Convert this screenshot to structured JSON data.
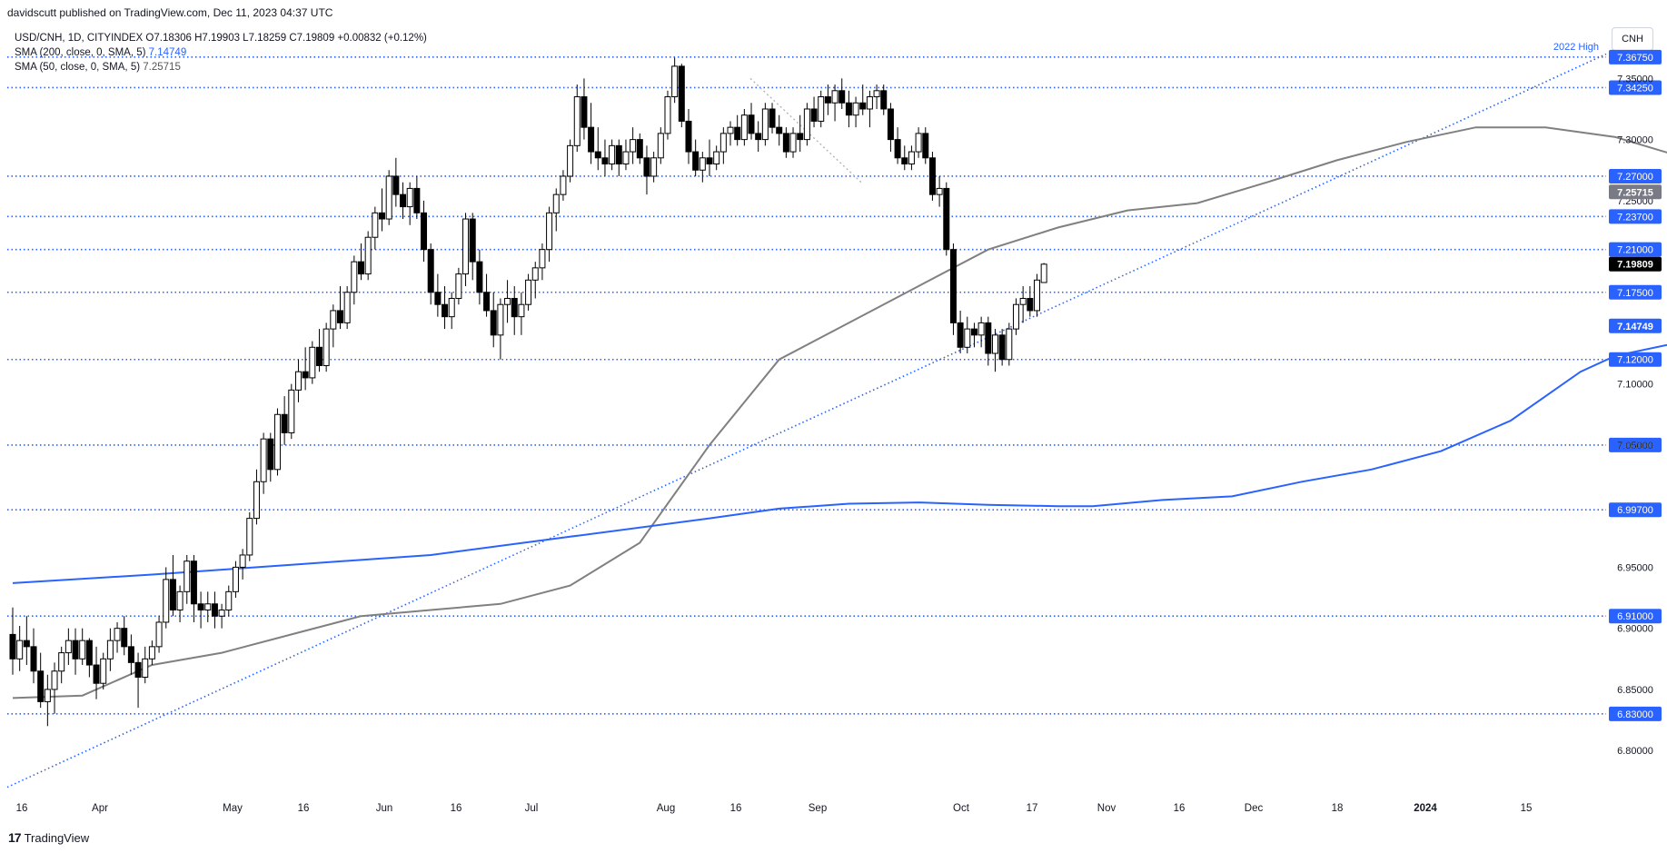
{
  "publisher": "davidscutt published on TradingView.com, Dec 11, 2023 04:37 UTC",
  "legend": {
    "symbol_line": "USD/CNH, 1D, CITYINDEX O7.18306 H7.19903 L7.18259 C7.19809 +0.00832 (+0.12%)",
    "sma200_label": "SMA (200, close, 0, SMA, 5)",
    "sma200_value": "7.14749",
    "sma50_label": "SMA (50, close, 0, SMA, 5)",
    "sma50_value": "7.25715"
  },
  "currency_button": "CNH",
  "brand": {
    "logo": "17",
    "name": "TradingView"
  },
  "colors": {
    "up": "#ffffff",
    "down": "#000000",
    "sma200": "#2962ff",
    "sma50": "#808080",
    "level": "#2962ff",
    "accent_label": "#2962ff"
  },
  "chart_data": {
    "type": "candlestick",
    "symbol": "USD/CNH",
    "ylim": [
      6.76,
      7.38
    ],
    "axis_ticks": [
      "7.35000",
      "7.30000",
      "7.25000",
      "7.10000",
      "7.05000",
      "6.95000",
      "6.90000",
      "6.85000",
      "6.80000"
    ],
    "x_labels": [
      "16",
      "Apr",
      "May",
      "16",
      "Jun",
      "16",
      "Jul",
      "Aug",
      "16",
      "Sep",
      "Oct",
      "17",
      "Nov",
      "16",
      "Dec",
      "18",
      "2024",
      "15"
    ],
    "levels": [
      {
        "value": 7.3675,
        "label": "7.36750"
      },
      {
        "value": 7.3425,
        "label": "7.34250"
      },
      {
        "value": 7.27,
        "label": "7.27000"
      },
      {
        "value": 7.237,
        "label": "7.23700"
      },
      {
        "value": 7.21,
        "label": "7.21000"
      },
      {
        "value": 7.175,
        "label": "7.17500"
      },
      {
        "value": 7.12,
        "label": "7.12000"
      },
      {
        "value": 7.05,
        "label": "7.05000"
      },
      {
        "value": 6.997,
        "label": "6.99700"
      },
      {
        "value": 6.91,
        "label": "6.91000"
      },
      {
        "value": 6.83,
        "label": "6.83000"
      }
    ],
    "annotation": "2022 High",
    "last_price": {
      "value": 7.19809,
      "label": "7.19809"
    },
    "sma50_last": {
      "value": 7.25715,
      "label": "7.25715"
    },
    "sma200_last": {
      "value": 7.14749,
      "label": "7.14749"
    },
    "trendline": {
      "from": {
        "date": "Mar 13",
        "value": 6.77
      },
      "to": {
        "date": "Jan 23",
        "value": 7.37
      }
    },
    "sma50_series": [
      [
        0,
        6.843
      ],
      [
        10,
        6.845
      ],
      [
        20,
        6.87
      ],
      [
        30,
        6.88
      ],
      [
        40,
        6.895
      ],
      [
        50,
        6.91
      ],
      [
        60,
        6.915
      ],
      [
        70,
        6.92
      ],
      [
        80,
        6.935
      ],
      [
        90,
        6.97
      ],
      [
        100,
        7.05
      ],
      [
        110,
        7.12
      ],
      [
        120,
        7.15
      ],
      [
        130,
        7.18
      ],
      [
        140,
        7.21
      ],
      [
        150,
        7.228
      ],
      [
        160,
        7.242
      ],
      [
        170,
        7.248
      ],
      [
        180,
        7.265
      ],
      [
        190,
        7.283
      ],
      [
        200,
        7.298
      ],
      [
        210,
        7.31
      ],
      [
        220,
        7.31
      ],
      [
        230,
        7.302
      ],
      [
        240,
        7.285
      ],
      [
        250,
        7.262
      ]
    ],
    "sma200_series": [
      [
        0,
        6.937
      ],
      [
        20,
        6.944
      ],
      [
        40,
        6.952
      ],
      [
        60,
        6.96
      ],
      [
        80,
        6.975
      ],
      [
        100,
        6.99
      ],
      [
        110,
        6.998
      ],
      [
        120,
        7.002
      ],
      [
        130,
        7.003
      ],
      [
        140,
        7.001
      ],
      [
        150,
        7.0
      ],
      [
        155,
        7.0
      ],
      [
        165,
        7.005
      ],
      [
        175,
        7.008
      ],
      [
        185,
        7.02
      ],
      [
        195,
        7.03
      ],
      [
        205,
        7.045
      ],
      [
        215,
        7.07
      ],
      [
        225,
        7.11
      ],
      [
        230,
        7.123
      ],
      [
        240,
        7.135
      ],
      [
        250,
        7.147
      ]
    ],
    "ohlc": [
      [
        6.895,
        6.917,
        6.862,
        6.875
      ],
      [
        6.875,
        6.902,
        6.865,
        6.89
      ],
      [
        6.89,
        6.91,
        6.87,
        6.885
      ],
      [
        6.885,
        6.9,
        6.855,
        6.865
      ],
      [
        6.865,
        6.88,
        6.835,
        6.84
      ],
      [
        6.84,
        6.862,
        6.82,
        6.85
      ],
      [
        6.85,
        6.872,
        6.83,
        6.865
      ],
      [
        6.865,
        6.885,
        6.855,
        6.88
      ],
      [
        6.88,
        6.9,
        6.87,
        6.89
      ],
      [
        6.89,
        6.9,
        6.862,
        6.875
      ],
      [
        6.875,
        6.9,
        6.87,
        6.89
      ],
      [
        6.89,
        6.892,
        6.86,
        6.87
      ],
      [
        6.87,
        6.885,
        6.842,
        6.855
      ],
      [
        6.855,
        6.88,
        6.85,
        6.875
      ],
      [
        6.875,
        6.9,
        6.865,
        6.89
      ],
      [
        6.89,
        6.905,
        6.88,
        6.9
      ],
      [
        6.9,
        6.91,
        6.878,
        6.885
      ],
      [
        6.885,
        6.895,
        6.862,
        6.872
      ],
      [
        6.872,
        6.88,
        6.835,
        6.86
      ],
      [
        6.86,
        6.885,
        6.855,
        6.875
      ],
      [
        6.875,
        6.89,
        6.87,
        6.885
      ],
      [
        6.885,
        6.91,
        6.88,
        6.905
      ],
      [
        6.905,
        6.95,
        6.9,
        6.94
      ],
      [
        6.94,
        6.96,
        6.91,
        6.915
      ],
      [
        6.915,
        6.935,
        6.905,
        6.93
      ],
      [
        6.93,
        6.96,
        6.92,
        6.955
      ],
      [
        6.955,
        6.96,
        6.905,
        6.92
      ],
      [
        6.92,
        6.93,
        6.9,
        6.915
      ],
      [
        6.915,
        6.93,
        6.905,
        6.92
      ],
      [
        6.92,
        6.93,
        6.9,
        6.91
      ],
      [
        6.91,
        6.92,
        6.9,
        6.915
      ],
      [
        6.915,
        6.935,
        6.91,
        6.93
      ],
      [
        6.93,
        6.955,
        6.925,
        6.95
      ],
      [
        6.95,
        6.965,
        6.94,
        6.96
      ],
      [
        6.96,
        6.995,
        6.955,
        6.99
      ],
      [
        6.99,
        7.03,
        6.985,
        7.02
      ],
      [
        7.02,
        7.06,
        7.01,
        7.055
      ],
      [
        7.055,
        7.06,
        7.02,
        7.03
      ],
      [
        7.03,
        7.08,
        7.025,
        7.075
      ],
      [
        7.075,
        7.09,
        7.05,
        7.06
      ],
      [
        7.06,
        7.1,
        7.055,
        7.095
      ],
      [
        7.095,
        7.12,
        7.085,
        7.11
      ],
      [
        7.11,
        7.13,
        7.095,
        7.105
      ],
      [
        7.105,
        7.135,
        7.1,
        7.13
      ],
      [
        7.13,
        7.145,
        7.11,
        7.115
      ],
      [
        7.115,
        7.15,
        7.11,
        7.145
      ],
      [
        7.145,
        7.165,
        7.13,
        7.16
      ],
      [
        7.16,
        7.18,
        7.145,
        7.15
      ],
      [
        7.15,
        7.18,
        7.145,
        7.175
      ],
      [
        7.175,
        7.205,
        7.165,
        7.2
      ],
      [
        7.2,
        7.215,
        7.185,
        7.19
      ],
      [
        7.19,
        7.225,
        7.185,
        7.22
      ],
      [
        7.22,
        7.245,
        7.21,
        7.24
      ],
      [
        7.24,
        7.26,
        7.225,
        7.235
      ],
      [
        7.235,
        7.275,
        7.23,
        7.27
      ],
      [
        7.27,
        7.285,
        7.245,
        7.255
      ],
      [
        7.255,
        7.265,
        7.235,
        7.245
      ],
      [
        7.245,
        7.265,
        7.23,
        7.26
      ],
      [
        7.26,
        7.27,
        7.235,
        7.24
      ],
      [
        7.24,
        7.25,
        7.2,
        7.21
      ],
      [
        7.21,
        7.215,
        7.165,
        7.175
      ],
      [
        7.175,
        7.19,
        7.155,
        7.165
      ],
      [
        7.165,
        7.18,
        7.145,
        7.155
      ],
      [
        7.155,
        7.175,
        7.145,
        7.17
      ],
      [
        7.17,
        7.195,
        7.165,
        7.19
      ],
      [
        7.19,
        7.24,
        7.18,
        7.235
      ],
      [
        7.235,
        7.24,
        7.185,
        7.2
      ],
      [
        7.2,
        7.21,
        7.165,
        7.175
      ],
      [
        7.175,
        7.19,
        7.155,
        7.16
      ],
      [
        7.16,
        7.175,
        7.13,
        7.14
      ],
      [
        7.14,
        7.17,
        7.12,
        7.165
      ],
      [
        7.165,
        7.185,
        7.15,
        7.17
      ],
      [
        7.17,
        7.18,
        7.14,
        7.155
      ],
      [
        7.155,
        7.175,
        7.14,
        7.165
      ],
      [
        7.165,
        7.19,
        7.16,
        7.185
      ],
      [
        7.185,
        7.2,
        7.17,
        7.195
      ],
      [
        7.195,
        7.215,
        7.185,
        7.21
      ],
      [
        7.21,
        7.245,
        7.2,
        7.24
      ],
      [
        7.24,
        7.26,
        7.225,
        7.255
      ],
      [
        7.255,
        7.275,
        7.25,
        7.27
      ],
      [
        7.27,
        7.3,
        7.265,
        7.295
      ],
      [
        7.295,
        7.345,
        7.29,
        7.335
      ],
      [
        7.335,
        7.35,
        7.3,
        7.31
      ],
      [
        7.31,
        7.33,
        7.28,
        7.29
      ],
      [
        7.29,
        7.31,
        7.275,
        7.285
      ],
      [
        7.285,
        7.3,
        7.27,
        7.28
      ],
      [
        7.28,
        7.3,
        7.275,
        7.295
      ],
      [
        7.295,
        7.3,
        7.27,
        7.28
      ],
      [
        7.28,
        7.3,
        7.275,
        7.29
      ],
      [
        7.29,
        7.31,
        7.28,
        7.3
      ],
      [
        7.3,
        7.305,
        7.28,
        7.285
      ],
      [
        7.285,
        7.295,
        7.255,
        7.27
      ],
      [
        7.27,
        7.29,
        7.265,
        7.285
      ],
      [
        7.285,
        7.31,
        7.28,
        7.305
      ],
      [
        7.305,
        7.34,
        7.3,
        7.335
      ],
      [
        7.335,
        7.367,
        7.33,
        7.36
      ],
      [
        7.36,
        7.362,
        7.31,
        7.315
      ],
      [
        7.315,
        7.325,
        7.28,
        7.29
      ],
      [
        7.29,
        7.3,
        7.27,
        7.275
      ],
      [
        7.275,
        7.29,
        7.265,
        7.285
      ],
      [
        7.285,
        7.3,
        7.27,
        7.28
      ],
      [
        7.28,
        7.295,
        7.275,
        7.29
      ],
      [
        7.29,
        7.31,
        7.28,
        7.305
      ],
      [
        7.305,
        7.315,
        7.295,
        7.31
      ],
      [
        7.31,
        7.32,
        7.295,
        7.3
      ],
      [
        7.3,
        7.325,
        7.295,
        7.32
      ],
      [
        7.32,
        7.33,
        7.3,
        7.305
      ],
      [
        7.305,
        7.315,
        7.29,
        7.3
      ],
      [
        7.3,
        7.33,
        7.295,
        7.325
      ],
      [
        7.325,
        7.33,
        7.305,
        7.31
      ],
      [
        7.31,
        7.32,
        7.295,
        7.305
      ],
      [
        7.305,
        7.31,
        7.285,
        7.29
      ],
      [
        7.29,
        7.31,
        7.285,
        7.305
      ],
      [
        7.305,
        7.32,
        7.29,
        7.3
      ],
      [
        7.3,
        7.33,
        7.295,
        7.325
      ],
      [
        7.325,
        7.335,
        7.31,
        7.315
      ],
      [
        7.315,
        7.34,
        7.31,
        7.335
      ],
      [
        7.335,
        7.345,
        7.32,
        7.33
      ],
      [
        7.33,
        7.345,
        7.315,
        7.34
      ],
      [
        7.34,
        7.35,
        7.325,
        7.33
      ],
      [
        7.33,
        7.34,
        7.31,
        7.32
      ],
      [
        7.32,
        7.335,
        7.31,
        7.33
      ],
      [
        7.33,
        7.345,
        7.32,
        7.325
      ],
      [
        7.325,
        7.34,
        7.31,
        7.335
      ],
      [
        7.335,
        7.345,
        7.325,
        7.34
      ],
      [
        7.34,
        7.345,
        7.32,
        7.325
      ],
      [
        7.325,
        7.33,
        7.29,
        7.3
      ],
      [
        7.3,
        7.31,
        7.28,
        7.285
      ],
      [
        7.285,
        7.295,
        7.275,
        7.28
      ],
      [
        7.28,
        7.295,
        7.275,
        7.29
      ],
      [
        7.29,
        7.31,
        7.285,
        7.305
      ],
      [
        7.305,
        7.31,
        7.28,
        7.285
      ],
      [
        7.285,
        7.29,
        7.25,
        7.255
      ],
      [
        7.255,
        7.27,
        7.245,
        7.26
      ],
      [
        7.26,
        7.265,
        7.205,
        7.21
      ],
      [
        7.21,
        7.215,
        7.14,
        7.15
      ],
      [
        7.15,
        7.16,
        7.125,
        7.13
      ],
      [
        7.13,
        7.155,
        7.125,
        7.145
      ],
      [
        7.145,
        7.15,
        7.13,
        7.14
      ],
      [
        7.14,
        7.155,
        7.13,
        7.15
      ],
      [
        7.15,
        7.155,
        7.115,
        7.125
      ],
      [
        7.125,
        7.145,
        7.11,
        7.14
      ],
      [
        7.14,
        7.145,
        7.115,
        7.12
      ],
      [
        7.12,
        7.15,
        7.115,
        7.145
      ],
      [
        7.145,
        7.17,
        7.14,
        7.165
      ],
      [
        7.165,
        7.18,
        7.15,
        7.17
      ],
      [
        7.17,
        7.18,
        7.155,
        7.16
      ],
      [
        7.16,
        7.19,
        7.155,
        7.185
      ],
      [
        7.183,
        7.199,
        7.183,
        7.198
      ]
    ]
  }
}
